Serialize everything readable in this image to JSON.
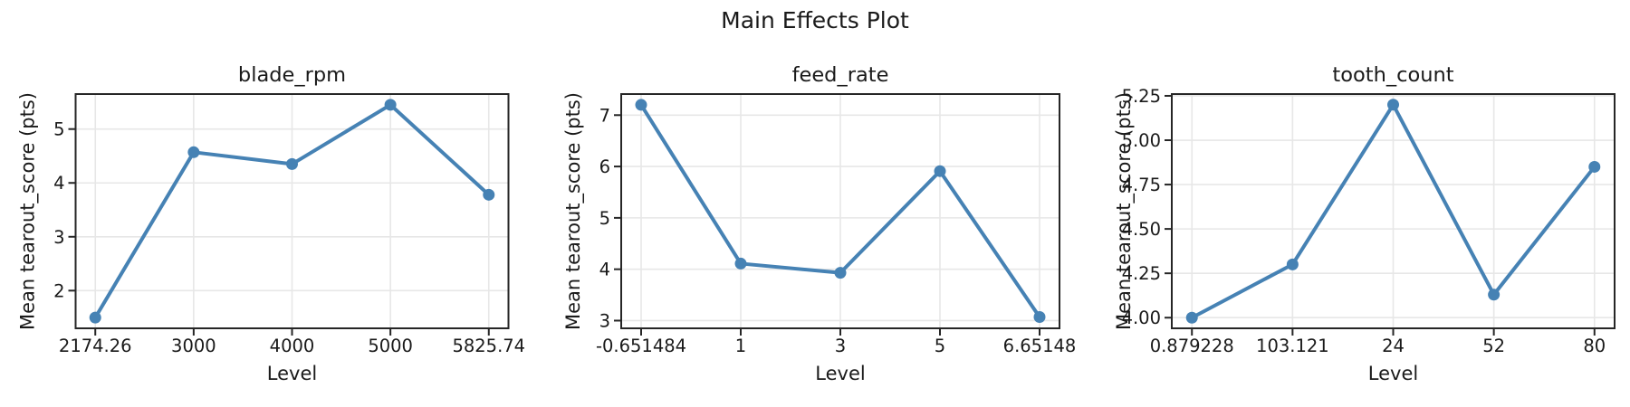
{
  "figure": {
    "title": "Main Effects Plot",
    "background": "#ffffff"
  },
  "colors": {
    "series": "#4682b4",
    "grid": "#e7e7e7",
    "spine": "#262626",
    "text": "#1a1a1a"
  },
  "chart_data": [
    {
      "type": "line",
      "title": "blade_rpm",
      "xlabel": "Level",
      "ylabel": "Mean tearout_score (pts)",
      "categories": [
        "2174.26",
        "3000",
        "4000",
        "5000",
        "5825.74"
      ],
      "values": [
        1.5,
        4.57,
        4.35,
        5.45,
        3.78
      ],
      "ytick_labels": [
        "2",
        "3",
        "4",
        "5"
      ],
      "ytick_values": [
        2,
        3,
        4,
        5
      ],
      "ylim": [
        1.3,
        5.65
      ],
      "grid": true,
      "legend_position": "none"
    },
    {
      "type": "line",
      "title": "feed_rate",
      "xlabel": "Level",
      "ylabel": "Mean tearout_score (pts)",
      "categories": [
        "-0.651484",
        "1",
        "3",
        "5",
        "6.65148"
      ],
      "values": [
        7.2,
        4.11,
        3.93,
        5.91,
        3.07
      ],
      "ytick_labels": [
        "3",
        "4",
        "5",
        "6",
        "7"
      ],
      "ytick_values": [
        3,
        4,
        5,
        6,
        7
      ],
      "ylim": [
        2.85,
        7.41
      ],
      "grid": true,
      "legend_position": "none"
    },
    {
      "type": "line",
      "title": "tooth_count",
      "xlabel": "Level",
      "ylabel": "Mean tearout_score (pts)",
      "categories": [
        "0.879228",
        "103.121",
        "24",
        "52",
        "80"
      ],
      "values": [
        4.0,
        4.3,
        5.2,
        4.13,
        4.85
      ],
      "ytick_labels": [
        "4.00",
        "4.25",
        "4.50",
        "4.75",
        "5.00",
        "5.25"
      ],
      "ytick_values": [
        4.0,
        4.25,
        4.5,
        4.75,
        5.0,
        5.25
      ],
      "ylim": [
        3.94,
        5.26
      ],
      "grid": true,
      "legend_position": "none"
    }
  ]
}
